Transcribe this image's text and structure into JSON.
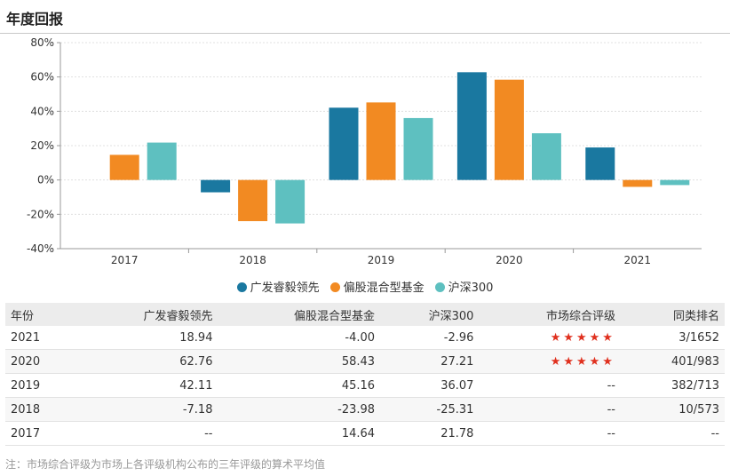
{
  "title": "年度回报",
  "chart_data": {
    "type": "bar",
    "categories": [
      "2017",
      "2018",
      "2019",
      "2020",
      "2021"
    ],
    "series": [
      {
        "name": "广发睿毅领先",
        "color": "#1a78a0",
        "values": [
          null,
          -7.18,
          42.11,
          62.76,
          18.94
        ]
      },
      {
        "name": "偏股混合型基金",
        "color": "#f28a22",
        "values": [
          14.64,
          -23.98,
          45.16,
          58.43,
          -4.0
        ]
      },
      {
        "name": "沪深300",
        "color": "#5ec0c0",
        "values": [
          21.78,
          -25.31,
          36.07,
          27.21,
          -2.96
        ]
      }
    ],
    "ylim": [
      -40,
      80
    ],
    "yticks": [
      -40,
      -20,
      0,
      20,
      40,
      60,
      80
    ],
    "ytick_labels": [
      "-40%",
      "-20%",
      "0%",
      "20%",
      "40%",
      "60%",
      "80%"
    ],
    "grid": true,
    "legend_position": "bottom"
  },
  "table": {
    "headers": [
      "年份",
      "广发睿毅领先",
      "偏股混合型基金",
      "沪深300",
      "市场综合评级",
      "同类排名"
    ],
    "rows": [
      [
        "2021",
        "18.94",
        "-4.00",
        "-2.96",
        "★★★★★",
        "3/1652"
      ],
      [
        "2020",
        "62.76",
        "58.43",
        "27.21",
        "★★★★★",
        "401/983"
      ],
      [
        "2019",
        "42.11",
        "45.16",
        "36.07",
        "--",
        "382/713"
      ],
      [
        "2018",
        "-7.18",
        "-23.98",
        "-25.31",
        "--",
        "10/573"
      ],
      [
        "2017",
        "--",
        "14.64",
        "21.78",
        "--",
        "--"
      ]
    ]
  },
  "note": "注：市场综合评级为市场上各评级机构公布的三年评级的算术平均值"
}
